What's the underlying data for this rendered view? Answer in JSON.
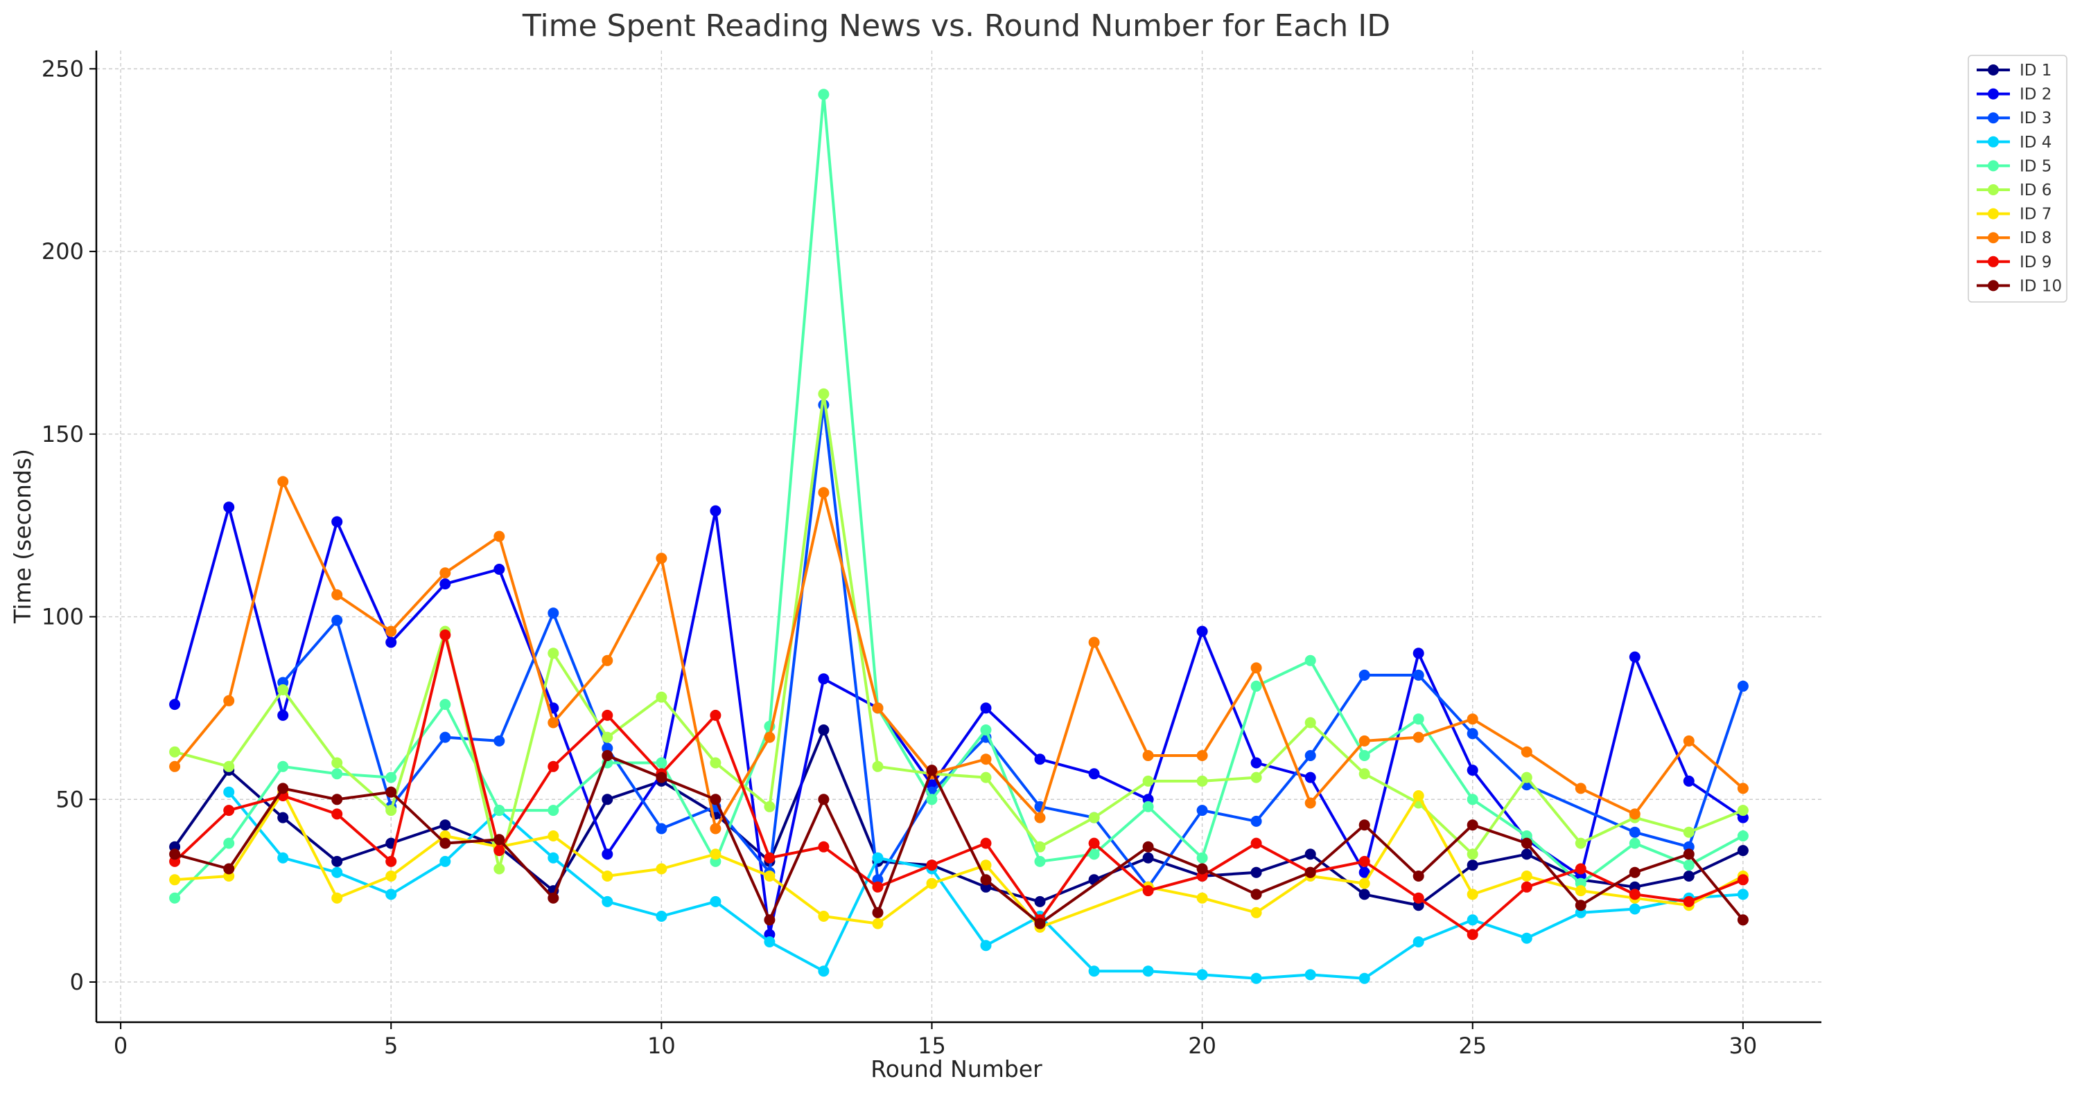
{
  "chart_data": {
    "type": "line",
    "title": "Time Spent Reading News vs. Round Number for Each ID",
    "xlabel": "Round Number",
    "ylabel": "Time (seconds)",
    "xlim": [
      -0.45,
      31.45
    ],
    "ylim": [
      -11,
      255
    ],
    "xticks": [
      0,
      5,
      10,
      15,
      20,
      25,
      30
    ],
    "yticks": [
      0,
      50,
      100,
      150,
      200,
      250
    ],
    "grid": true,
    "legend_position": "upper-right-outside",
    "x": [
      1,
      2,
      3,
      4,
      5,
      6,
      7,
      8,
      9,
      10,
      11,
      12,
      13,
      14,
      15,
      16,
      17,
      18,
      19,
      20,
      21,
      22,
      23,
      24,
      25,
      26,
      27,
      28,
      29,
      30
    ],
    "series": [
      {
        "name": "ID 1",
        "color": "#000080",
        "values": [
          37,
          58,
          45,
          33,
          38,
          43,
          37,
          25,
          50,
          55,
          46,
          33,
          69,
          33,
          32,
          26,
          22,
          28,
          34,
          29,
          30,
          35,
          24,
          21,
          32,
          35,
          28,
          26,
          29,
          36
        ]
      },
      {
        "name": "ID 2",
        "color": "#0000f1",
        "values": [
          76,
          130,
          73,
          126,
          93,
          109,
          113,
          75,
          35,
          57,
          129,
          13,
          83,
          75,
          54,
          75,
          61,
          57,
          50,
          96,
          60,
          56,
          30,
          90,
          58,
          39,
          29,
          89,
          55,
          45
        ]
      },
      {
        "name": "ID 3",
        "color": "#004dff",
        "values": [
          null,
          null,
          82,
          99,
          48,
          67,
          66,
          101,
          64,
          42,
          48,
          30,
          158,
          28,
          52,
          67,
          48,
          45,
          26,
          47,
          44,
          62,
          84,
          84,
          68,
          54,
          null,
          41,
          37,
          81
        ]
      },
      {
        "name": "ID 4",
        "color": "#00d4ff",
        "values": [
          null,
          52,
          34,
          30,
          24,
          33,
          47,
          34,
          22,
          18,
          22,
          11,
          3,
          34,
          31,
          10,
          18,
          3,
          3,
          2,
          1,
          2,
          1,
          11,
          17,
          12,
          19,
          20,
          23,
          24
        ]
      },
      {
        "name": "ID 5",
        "color": "#4dffaa",
        "values": [
          23,
          38,
          59,
          57,
          56,
          76,
          47,
          47,
          60,
          60,
          33,
          70,
          243,
          75,
          50,
          69,
          33,
          35,
          48,
          34,
          81,
          88,
          62,
          72,
          50,
          40,
          27,
          38,
          32,
          40
        ]
      },
      {
        "name": "ID 6",
        "color": "#aaff4d",
        "values": [
          63,
          59,
          80,
          60,
          47,
          96,
          31,
          90,
          67,
          78,
          60,
          48,
          161,
          59,
          57,
          56,
          37,
          45,
          55,
          55,
          56,
          71,
          57,
          49,
          35,
          56,
          38,
          45,
          41,
          47
        ]
      },
      {
        "name": "ID 7",
        "color": "#ffe600",
        "values": [
          28,
          29,
          52,
          23,
          29,
          40,
          37,
          40,
          29,
          31,
          35,
          29,
          18,
          16,
          27,
          32,
          15,
          null,
          26,
          23,
          19,
          29,
          27,
          51,
          24,
          29,
          25,
          23,
          21,
          29
        ]
      },
      {
        "name": "ID 8",
        "color": "#ff7a00",
        "values": [
          59,
          77,
          137,
          106,
          96,
          112,
          122,
          71,
          88,
          116,
          42,
          67,
          134,
          75,
          57,
          61,
          45,
          93,
          62,
          62,
          86,
          49,
          66,
          67,
          72,
          63,
          53,
          46,
          66,
          53
        ]
      },
      {
        "name": "ID 9",
        "color": "#f10800",
        "values": [
          33,
          47,
          51,
          46,
          33,
          95,
          36,
          59,
          73,
          57,
          73,
          34,
          37,
          26,
          32,
          38,
          17,
          38,
          25,
          29,
          38,
          30,
          33,
          23,
          13,
          26,
          31,
          24,
          22,
          28
        ]
      },
      {
        "name": "ID 10",
        "color": "#800000",
        "values": [
          35,
          31,
          53,
          50,
          52,
          38,
          39,
          23,
          62,
          56,
          50,
          17,
          50,
          19,
          58,
          28,
          16,
          null,
          37,
          31,
          24,
          30,
          43,
          29,
          43,
          38,
          21,
          30,
          35,
          17
        ]
      }
    ]
  }
}
